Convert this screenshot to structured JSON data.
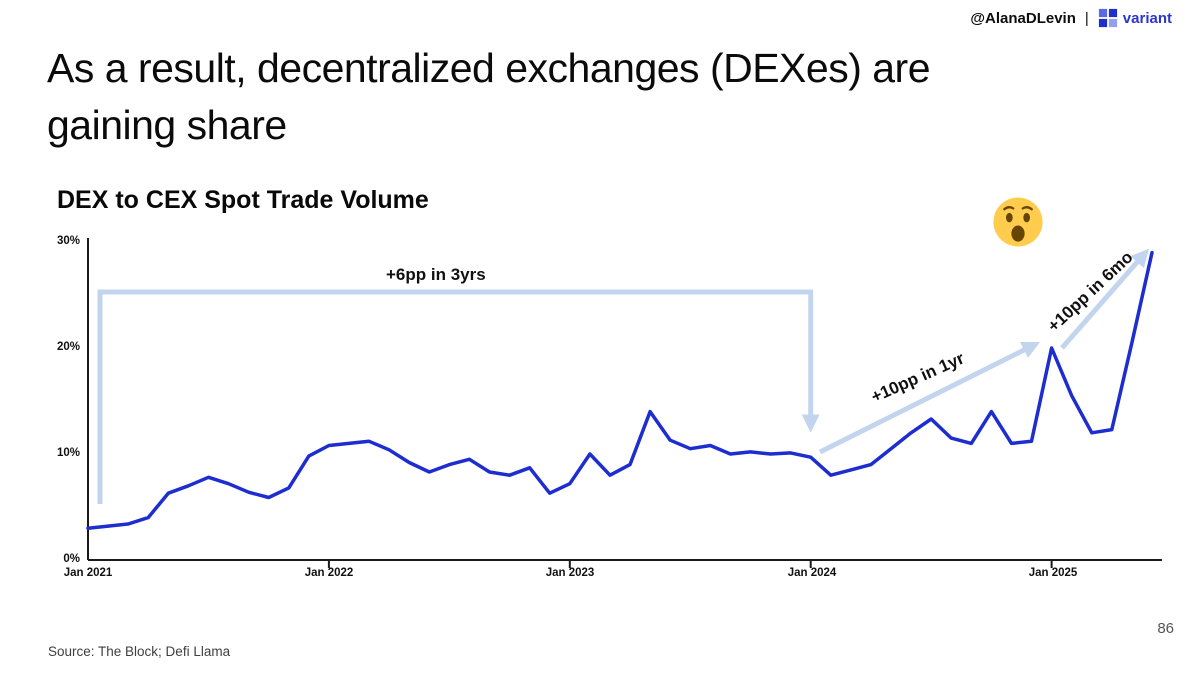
{
  "header": {
    "handle": "@AlanaDLevin",
    "separator": "|",
    "brand": "variant"
  },
  "slide": {
    "title_line1": "As a result, decentralized exchanges (DEXes) are",
    "title_line2": "gaining share",
    "source": "Source: The Block; Defi Llama",
    "page_number": "86"
  },
  "chart_data": {
    "type": "line",
    "title": "DEX to CEX Spot Trade Volume",
    "ylim": [
      0,
      30
    ],
    "yticks": [
      "0%",
      "10%",
      "20%",
      "30%"
    ],
    "xticks": [
      "Jan 2021",
      "Jan 2022",
      "Jan 2023",
      "Jan 2024",
      "Jan 2025"
    ],
    "x": [
      "2021-01",
      "2021-02",
      "2021-03",
      "2021-04",
      "2021-05",
      "2021-06",
      "2021-07",
      "2021-08",
      "2021-09",
      "2021-10",
      "2021-11",
      "2021-12",
      "2022-01",
      "2022-02",
      "2022-03",
      "2022-04",
      "2022-05",
      "2022-06",
      "2022-07",
      "2022-08",
      "2022-09",
      "2022-10",
      "2022-11",
      "2022-12",
      "2023-01",
      "2023-02",
      "2023-03",
      "2023-04",
      "2023-05",
      "2023-06",
      "2023-07",
      "2023-08",
      "2023-09",
      "2023-10",
      "2023-11",
      "2023-12",
      "2024-01",
      "2024-02",
      "2024-03",
      "2024-04",
      "2024-05",
      "2024-06",
      "2024-07",
      "2024-08",
      "2024-09",
      "2024-10",
      "2024-11",
      "2024-12",
      "2025-01",
      "2025-02",
      "2025-03",
      "2025-04",
      "2025-05",
      "2025-06"
    ],
    "values": [
      3.0,
      3.2,
      3.4,
      4.0,
      6.3,
      7.0,
      7.8,
      7.2,
      6.4,
      5.9,
      6.8,
      9.8,
      10.8,
      11.0,
      11.2,
      10.4,
      9.2,
      8.3,
      9.0,
      9.5,
      8.3,
      8.0,
      8.7,
      6.3,
      7.2,
      10.0,
      8.0,
      9.0,
      14.0,
      11.3,
      10.5,
      10.8,
      10.0,
      10.2,
      10.0,
      10.1,
      9.7,
      8.0,
      8.5,
      9.0,
      10.5,
      12.0,
      13.3,
      11.5,
      11.0,
      14.0,
      11.0,
      11.2,
      20.0,
      15.5,
      12.0,
      12.3,
      20.5,
      29.0
    ],
    "line_color": "#1d2dd0",
    "annotation_color": "#c3d4ee",
    "grid": false,
    "legend": false,
    "annotations": [
      {
        "id": "6pp",
        "text": "+6pp in 3yrs"
      },
      {
        "id": "1yr",
        "text": "+10pp in 1yr"
      },
      {
        "id": "6mo",
        "text": "+10pp in 6mo"
      }
    ],
    "emoji_icon": "astonished-face"
  }
}
